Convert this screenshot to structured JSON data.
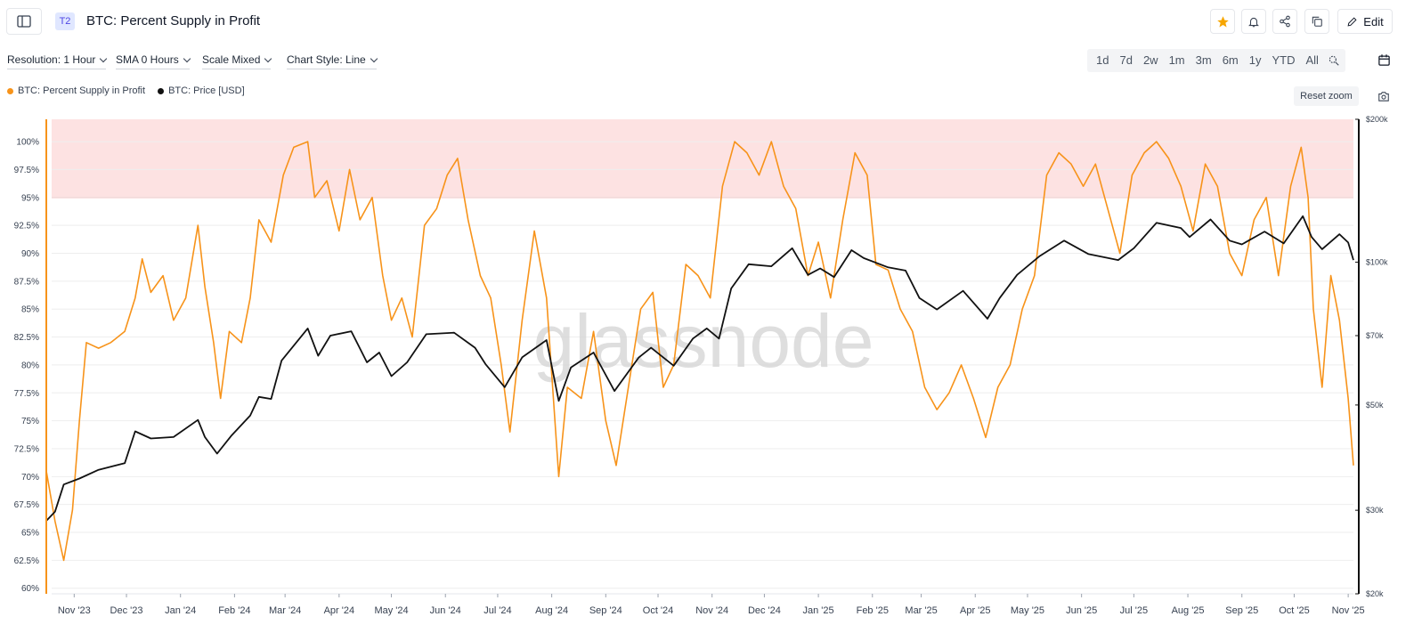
{
  "header": {
    "tier_badge": "T2",
    "title": "BTC: Percent Supply in Profit",
    "edit_label": "Edit",
    "star_color": "#f7a600"
  },
  "toolbar": {
    "resolution": "Resolution: 1 Hour",
    "sma": "SMA 0 Hours",
    "scale": "Scale Mixed",
    "chart_style": "Chart Style: Line",
    "ranges": [
      "1d",
      "7d",
      "2w",
      "1m",
      "3m",
      "6m",
      "1y",
      "YTD",
      "All"
    ]
  },
  "legend": {
    "items": [
      {
        "label": "BTC: Percent Supply in Profit",
        "color": "#f7931a"
      },
      {
        "label": "BTC: Price [USD]",
        "color": "#111111"
      }
    ],
    "reset_zoom": "Reset zoom"
  },
  "watermark": "glassnode",
  "chart_data": {
    "type": "line",
    "x_labels": [
      "Nov '23",
      "Dec '23",
      "Jan '24",
      "Feb '24",
      "Mar '24",
      "Apr '24",
      "May '24",
      "Jun '24",
      "Jul '24",
      "Aug '24",
      "Sep '24",
      "Oct '24",
      "Nov '24",
      "Dec '24",
      "Jan '25",
      "Feb '25",
      "Mar '25",
      "Apr '25",
      "May '25",
      "Jun '25",
      "Jul '25",
      "Aug '25",
      "Sep '25",
      "Oct '25",
      "Nov '25"
    ],
    "x_range": [
      "2023-10-16",
      "2025-11-04"
    ],
    "y_left": {
      "ticks": [
        "60%",
        "62.5%",
        "65%",
        "67.5%",
        "70%",
        "72.5%",
        "75%",
        "77.5%",
        "80%",
        "82.5%",
        "85%",
        "87.5%",
        "90%",
        "92.5%",
        "95%",
        "97.5%",
        "100%"
      ],
      "range": [
        59.5,
        102
      ]
    },
    "y_right": {
      "scale": "log",
      "ticks": [
        "$20k",
        "$30k",
        "$50k",
        "$70k",
        "$100k",
        "$200k"
      ],
      "range": [
        20000,
        200000
      ]
    },
    "threshold": {
      "value": 95,
      "band": [
        95,
        102
      ],
      "line_color": "#f87171",
      "band_color": "#fde2e2"
    },
    "series": [
      {
        "name": "BTC: Percent Supply in Profit",
        "axis": "left",
        "color": "#f7931a",
        "points": [
          [
            "2023-10-16",
            70.5
          ],
          [
            "2023-10-21",
            66
          ],
          [
            "2023-10-26",
            62.5
          ],
          [
            "2023-10-31",
            67
          ],
          [
            "2023-11-04",
            75
          ],
          [
            "2023-11-08",
            82
          ],
          [
            "2023-11-15",
            81.5
          ],
          [
            "2023-11-22",
            82
          ],
          [
            "2023-11-30",
            83
          ],
          [
            "2023-12-06",
            86
          ],
          [
            "2023-12-10",
            89.5
          ],
          [
            "2023-12-15",
            86.5
          ],
          [
            "2023-12-22",
            88
          ],
          [
            "2023-12-28",
            84
          ],
          [
            "2024-01-04",
            86
          ],
          [
            "2024-01-11",
            92.5
          ],
          [
            "2024-01-15",
            87
          ],
          [
            "2024-01-20",
            82
          ],
          [
            "2024-01-24",
            77
          ],
          [
            "2024-01-29",
            83
          ],
          [
            "2024-02-05",
            82
          ],
          [
            "2024-02-10",
            86
          ],
          [
            "2024-02-15",
            93
          ],
          [
            "2024-02-22",
            91
          ],
          [
            "2024-02-29",
            97
          ],
          [
            "2024-03-06",
            99.5
          ],
          [
            "2024-03-14",
            100
          ],
          [
            "2024-03-18",
            95
          ],
          [
            "2024-03-25",
            96.5
          ],
          [
            "2024-04-01",
            92
          ],
          [
            "2024-04-07",
            97.5
          ],
          [
            "2024-04-13",
            93
          ],
          [
            "2024-04-20",
            95
          ],
          [
            "2024-04-26",
            88
          ],
          [
            "2024-05-01",
            84
          ],
          [
            "2024-05-07",
            86
          ],
          [
            "2024-05-13",
            82.5
          ],
          [
            "2024-05-20",
            92.5
          ],
          [
            "2024-05-27",
            94
          ],
          [
            "2024-06-02",
            97
          ],
          [
            "2024-06-08",
            98.5
          ],
          [
            "2024-06-14",
            93
          ],
          [
            "2024-06-21",
            88
          ],
          [
            "2024-06-27",
            86
          ],
          [
            "2024-07-03",
            80
          ],
          [
            "2024-07-08",
            74
          ],
          [
            "2024-07-15",
            84
          ],
          [
            "2024-07-22",
            92
          ],
          [
            "2024-07-29",
            86
          ],
          [
            "2024-08-05",
            70
          ],
          [
            "2024-08-10",
            78
          ],
          [
            "2024-08-18",
            77
          ],
          [
            "2024-08-25",
            83
          ],
          [
            "2024-09-01",
            75
          ],
          [
            "2024-09-07",
            71
          ],
          [
            "2024-09-14",
            78
          ],
          [
            "2024-09-21",
            85
          ],
          [
            "2024-09-28",
            86.5
          ],
          [
            "2024-10-04",
            78
          ],
          [
            "2024-10-10",
            80
          ],
          [
            "2024-10-17",
            89
          ],
          [
            "2024-10-24",
            88
          ],
          [
            "2024-10-31",
            86
          ],
          [
            "2024-11-07",
            96
          ],
          [
            "2024-11-14",
            100
          ],
          [
            "2024-11-21",
            99
          ],
          [
            "2024-11-28",
            97
          ],
          [
            "2024-12-05",
            100
          ],
          [
            "2024-12-12",
            96
          ],
          [
            "2024-12-19",
            94
          ],
          [
            "2024-12-26",
            88
          ],
          [
            "2025-01-01",
            91
          ],
          [
            "2025-01-08",
            86
          ],
          [
            "2025-01-15",
            93
          ],
          [
            "2025-01-22",
            99
          ],
          [
            "2025-01-29",
            97
          ],
          [
            "2025-02-03",
            89
          ],
          [
            "2025-02-10",
            88.5
          ],
          [
            "2025-02-17",
            85
          ],
          [
            "2025-02-24",
            83
          ],
          [
            "2025-03-03",
            78
          ],
          [
            "2025-03-10",
            76
          ],
          [
            "2025-03-17",
            77.5
          ],
          [
            "2025-03-24",
            80
          ],
          [
            "2025-03-31",
            77
          ],
          [
            "2025-04-07",
            73.5
          ],
          [
            "2025-04-14",
            78
          ],
          [
            "2025-04-21",
            80
          ],
          [
            "2025-04-28",
            85
          ],
          [
            "2025-05-05",
            88
          ],
          [
            "2025-05-12",
            97
          ],
          [
            "2025-05-19",
            99
          ],
          [
            "2025-05-26",
            98
          ],
          [
            "2025-06-02",
            96
          ],
          [
            "2025-06-09",
            98
          ],
          [
            "2025-06-16",
            94
          ],
          [
            "2025-06-23",
            90
          ],
          [
            "2025-06-30",
            97
          ],
          [
            "2025-07-07",
            99
          ],
          [
            "2025-07-14",
            100
          ],
          [
            "2025-07-21",
            98.5
          ],
          [
            "2025-07-28",
            96
          ],
          [
            "2025-08-04",
            92
          ],
          [
            "2025-08-11",
            98
          ],
          [
            "2025-08-18",
            96
          ],
          [
            "2025-08-25",
            90
          ],
          [
            "2025-09-01",
            88
          ],
          [
            "2025-09-08",
            93
          ],
          [
            "2025-09-15",
            95
          ],
          [
            "2025-09-22",
            88
          ],
          [
            "2025-09-29",
            96
          ],
          [
            "2025-10-05",
            99.5
          ],
          [
            "2025-10-09",
            95
          ],
          [
            "2025-10-12",
            85
          ],
          [
            "2025-10-17",
            78
          ],
          [
            "2025-10-22",
            88
          ],
          [
            "2025-10-27",
            84
          ],
          [
            "2025-11-01",
            77
          ],
          [
            "2025-11-04",
            71
          ]
        ]
      },
      {
        "name": "BTC: Price [USD]",
        "axis": "right",
        "color": "#111111",
        "points": [
          [
            "2023-10-16",
            28500
          ],
          [
            "2023-10-21",
            29800
          ],
          [
            "2023-10-26",
            34000
          ],
          [
            "2023-11-04",
            35000
          ],
          [
            "2023-11-15",
            36500
          ],
          [
            "2023-11-30",
            37700
          ],
          [
            "2023-12-06",
            44000
          ],
          [
            "2023-12-15",
            42500
          ],
          [
            "2023-12-28",
            42800
          ],
          [
            "2024-01-11",
            46500
          ],
          [
            "2024-01-15",
            42800
          ],
          [
            "2024-01-22",
            39500
          ],
          [
            "2024-01-30",
            43000
          ],
          [
            "2024-02-10",
            47500
          ],
          [
            "2024-02-15",
            52000
          ],
          [
            "2024-02-22",
            51500
          ],
          [
            "2024-02-28",
            62000
          ],
          [
            "2024-03-05",
            66000
          ],
          [
            "2024-03-14",
            72500
          ],
          [
            "2024-03-20",
            63500
          ],
          [
            "2024-03-27",
            70000
          ],
          [
            "2024-04-08",
            71500
          ],
          [
            "2024-04-17",
            61500
          ],
          [
            "2024-04-24",
            64500
          ],
          [
            "2024-05-01",
            57500
          ],
          [
            "2024-05-10",
            61500
          ],
          [
            "2024-05-21",
            70500
          ],
          [
            "2024-06-06",
            71000
          ],
          [
            "2024-06-18",
            66000
          ],
          [
            "2024-06-24",
            61000
          ],
          [
            "2024-07-05",
            54500
          ],
          [
            "2024-07-15",
            63000
          ],
          [
            "2024-07-29",
            68500
          ],
          [
            "2024-08-05",
            51000
          ],
          [
            "2024-08-12",
            60000
          ],
          [
            "2024-08-25",
            64500
          ],
          [
            "2024-09-06",
            53500
          ],
          [
            "2024-09-20",
            63000
          ],
          [
            "2024-09-27",
            66000
          ],
          [
            "2024-10-10",
            60500
          ],
          [
            "2024-10-21",
            69000
          ],
          [
            "2024-10-29",
            72500
          ],
          [
            "2024-11-05",
            69000
          ],
          [
            "2024-11-12",
            88000
          ],
          [
            "2024-11-22",
            99000
          ],
          [
            "2024-12-05",
            98000
          ],
          [
            "2024-12-17",
            107000
          ],
          [
            "2024-12-26",
            94000
          ],
          [
            "2025-01-02",
            97000
          ],
          [
            "2025-01-10",
            93000
          ],
          [
            "2025-01-20",
            106000
          ],
          [
            "2025-01-27",
            102000
          ],
          [
            "2025-02-10",
            97500
          ],
          [
            "2025-02-20",
            96000
          ],
          [
            "2025-02-28",
            84000
          ],
          [
            "2025-03-10",
            79500
          ],
          [
            "2025-03-25",
            87000
          ],
          [
            "2025-04-08",
            76000
          ],
          [
            "2025-04-15",
            84000
          ],
          [
            "2025-04-25",
            94000
          ],
          [
            "2025-05-08",
            103000
          ],
          [
            "2025-05-22",
            111000
          ],
          [
            "2025-06-05",
            104000
          ],
          [
            "2025-06-22",
            101000
          ],
          [
            "2025-07-01",
            107000
          ],
          [
            "2025-07-14",
            121000
          ],
          [
            "2025-07-28",
            118000
          ],
          [
            "2025-08-02",
            113000
          ],
          [
            "2025-08-14",
            123000
          ],
          [
            "2025-08-25",
            111000
          ],
          [
            "2025-09-01",
            109000
          ],
          [
            "2025-09-14",
            116000
          ],
          [
            "2025-09-25",
            109500
          ],
          [
            "2025-10-06",
            125000
          ],
          [
            "2025-10-11",
            113000
          ],
          [
            "2025-10-17",
            106500
          ],
          [
            "2025-10-27",
            114500
          ],
          [
            "2025-11-01",
            110000
          ],
          [
            "2025-11-04",
            101000
          ]
        ]
      }
    ]
  }
}
